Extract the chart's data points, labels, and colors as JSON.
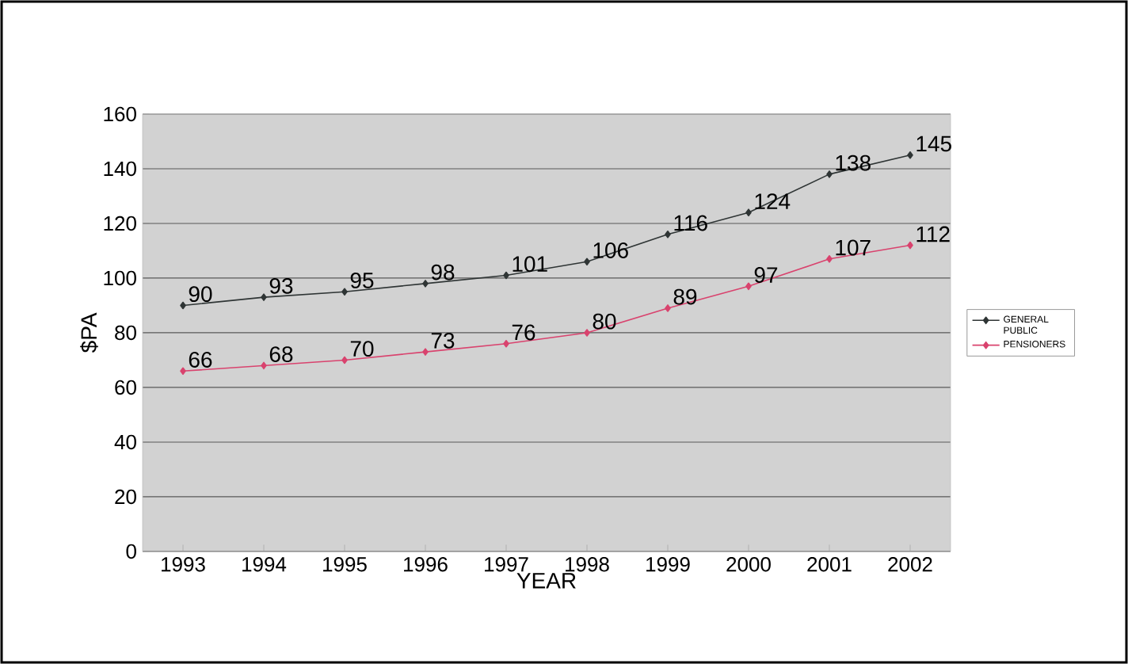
{
  "chart_data": {
    "type": "line",
    "xlabel": "YEAR",
    "ylabel": "$PA",
    "categories": [
      "1993",
      "1994",
      "1995",
      "1996",
      "1997",
      "1998",
      "1999",
      "2000",
      "2001",
      "2002"
    ],
    "series": [
      {
        "name": "GENERAL PUBLIC",
        "color": "#2f3535",
        "values": [
          90,
          93,
          95,
          98,
          101,
          106,
          116,
          124,
          138,
          145
        ]
      },
      {
        "name": "PENSIONERS",
        "color": "#d9436e",
        "values": [
          66,
          68,
          70,
          73,
          76,
          80,
          89,
          97,
          107,
          112
        ]
      }
    ],
    "ylim": [
      0,
      160
    ],
    "yticks": [
      0,
      20,
      40,
      60,
      80,
      100,
      120,
      140,
      160
    ],
    "grid": "y",
    "legend": "right",
    "marker": "diamond",
    "line_style": "solid",
    "data_labels": true
  }
}
